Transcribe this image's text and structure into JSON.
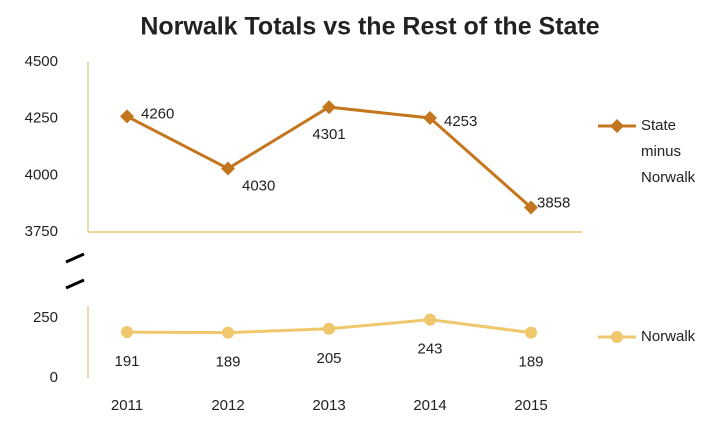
{
  "chart_data": {
    "type": "line",
    "title": "Norwalk Totals vs the Rest of the State",
    "categories": [
      "2011",
      "2012",
      "2013",
      "2014",
      "2015"
    ],
    "panels": [
      {
        "ylim": [
          3750,
          4500
        ],
        "yticks": [
          3750,
          4000,
          4250,
          4500
        ],
        "series": [
          {
            "name": "State minus Norwalk",
            "color": "#c4761e",
            "marker": "diamond",
            "values": [
              4260,
              4030,
              4301,
              4253,
              3858
            ]
          }
        ]
      },
      {
        "ylim": [
          0,
          300
        ],
        "yticks": [
          0,
          250
        ],
        "series": [
          {
            "name": "Norwalk",
            "color": "#efc76c",
            "marker": "circle",
            "values": [
              191,
              189,
              205,
              243,
              189
            ]
          }
        ]
      }
    ]
  }
}
